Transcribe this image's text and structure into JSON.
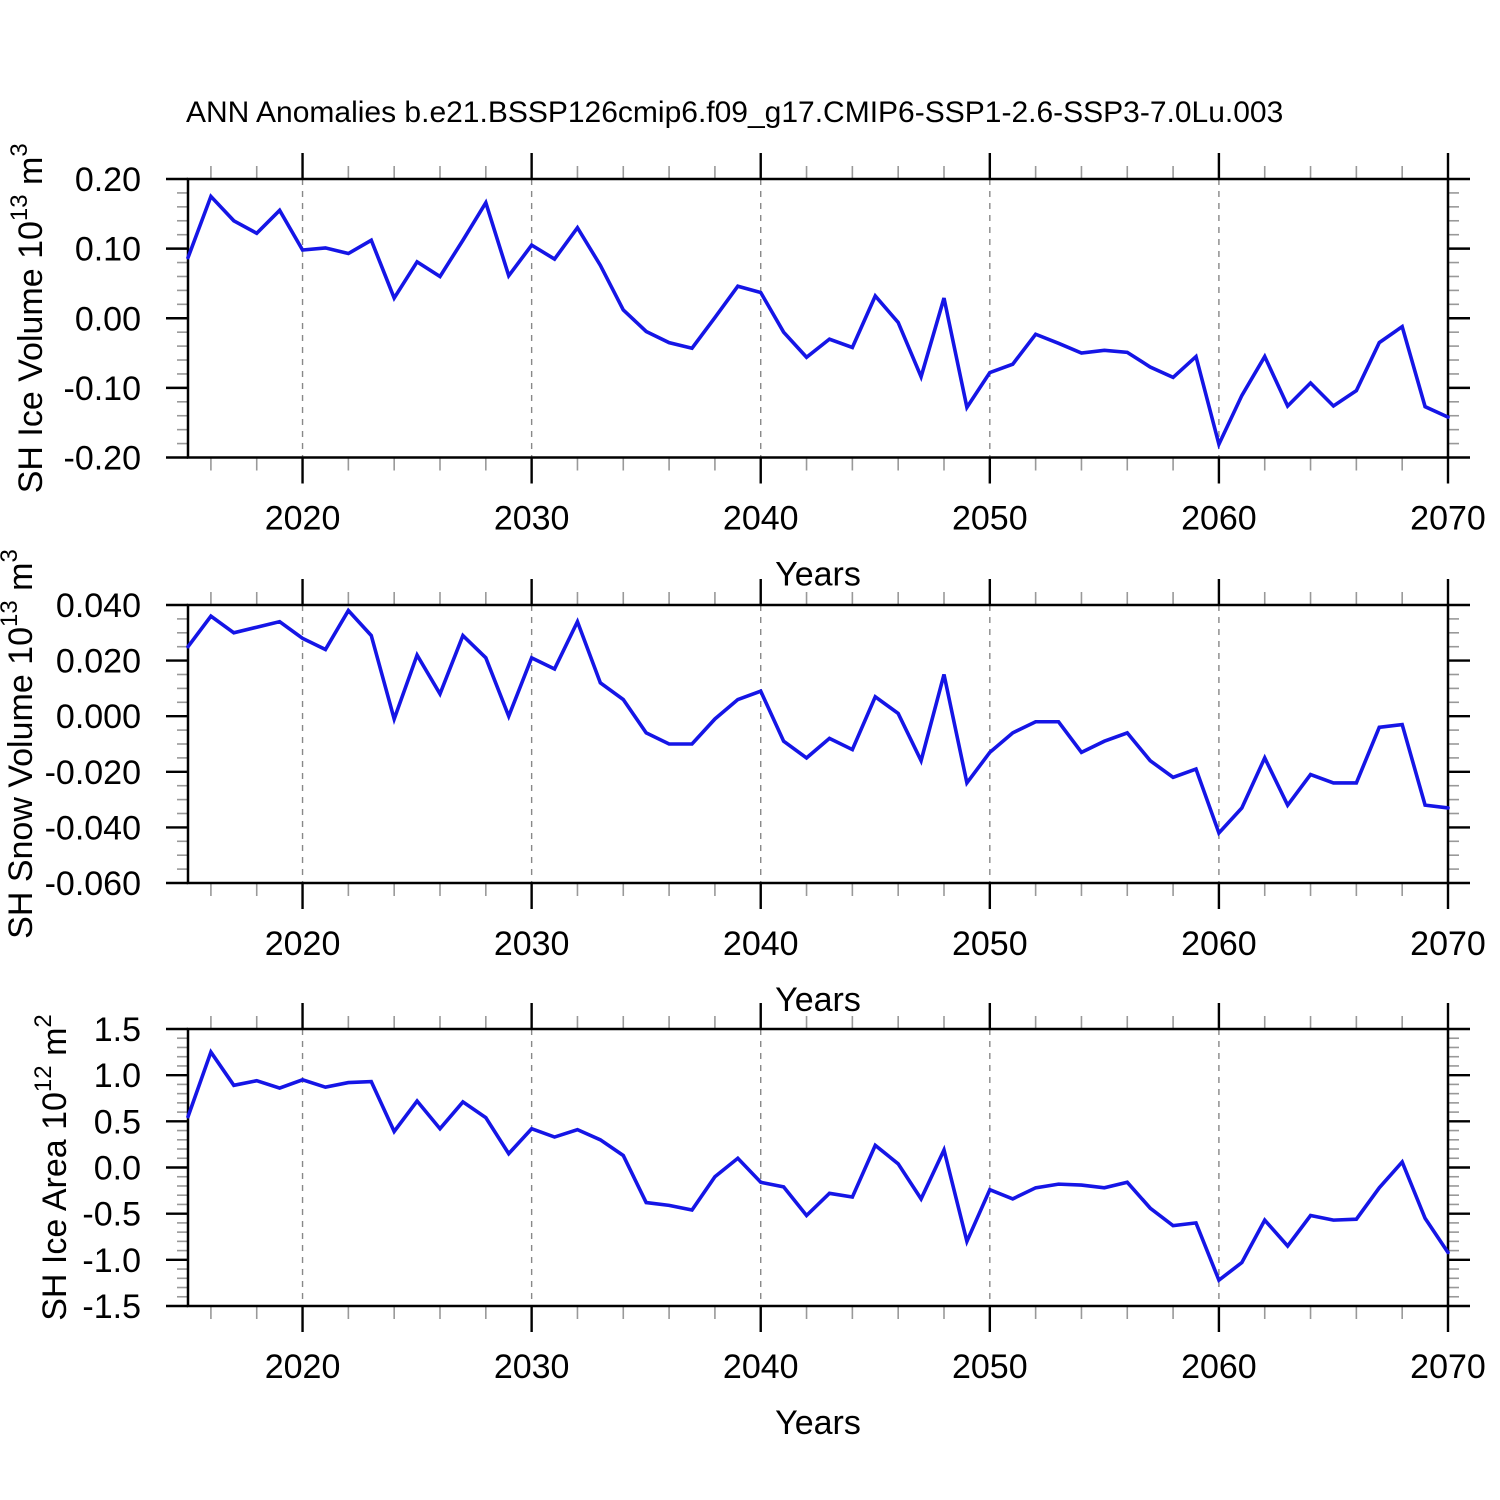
{
  "title": "ANN Anomalies b.e21.BSSP126cmip6.f09_g17.CMIP6-SSP1-2.6-SSP3-7.0Lu.003",
  "colors": {
    "line": "#1515e6",
    "axis": "#000000",
    "minor_tick": "#999999",
    "grid": "#888888",
    "background": "#ffffff",
    "text": "#000000"
  },
  "chart_data": {
    "type": "line",
    "xlabel": "Years",
    "legend": "none",
    "grid": "vertical-dashed",
    "x": [
      2015,
      2016,
      2017,
      2018,
      2019,
      2020,
      2021,
      2022,
      2023,
      2024,
      2025,
      2026,
      2027,
      2028,
      2029,
      2030,
      2031,
      2032,
      2033,
      2034,
      2035,
      2036,
      2037,
      2038,
      2039,
      2040,
      2041,
      2042,
      2043,
      2044,
      2045,
      2046,
      2047,
      2048,
      2049,
      2050,
      2051,
      2052,
      2053,
      2054,
      2055,
      2056,
      2057,
      2058,
      2059,
      2060,
      2061,
      2062,
      2063,
      2064,
      2065,
      2066,
      2067,
      2068,
      2069,
      2070
    ],
    "xlim": [
      2015,
      2070
    ],
    "x_ticks": {
      "labels": [
        "2020",
        "2030",
        "2040",
        "2050",
        "2060",
        "2070"
      ],
      "values": [
        2020,
        2030,
        2040,
        2050,
        2060,
        2070
      ],
      "minor_step": 2
    },
    "gridlines_x": [
      2020,
      2030,
      2040,
      2050,
      2060
    ],
    "panels": [
      {
        "name": "sh-ice-volume",
        "ylabel_text": "SH Ice Volume 10^13 m^3",
        "ylabel_parts": [
          {
            "t": "SH Ice Volume 10",
            "sup": false
          },
          {
            "t": "13",
            "sup": true
          },
          {
            "t": " m",
            "sup": false
          },
          {
            "t": "3",
            "sup": true
          }
        ],
        "ylim": [
          -0.2,
          0.2
        ],
        "y_ticks": {
          "labels": [
            "0.20",
            "0.10",
            "0.00",
            "-0.10",
            "-0.20"
          ],
          "values": [
            0.2,
            0.1,
            0.0,
            -0.1,
            -0.2
          ],
          "minor_step": 0.02
        },
        "values": [
          0.087,
          0.175,
          0.14,
          0.122,
          0.155,
          0.098,
          0.101,
          0.093,
          0.112,
          0.029,
          0.081,
          0.06,
          0.112,
          0.166,
          0.061,
          0.105,
          0.085,
          0.13,
          0.076,
          0.012,
          -0.019,
          -0.035,
          -0.043,
          0.001,
          0.046,
          0.037,
          -0.02,
          -0.056,
          -0.03,
          -0.042,
          0.032,
          -0.006,
          -0.084,
          0.029,
          -0.128,
          -0.078,
          -0.066,
          -0.023,
          -0.036,
          -0.05,
          -0.046,
          -0.049,
          -0.07,
          -0.085,
          -0.055,
          -0.181,
          -0.111,
          -0.055,
          -0.126,
          -0.093,
          -0.126,
          -0.104,
          -0.035,
          -0.012,
          -0.127,
          -0.142
        ]
      },
      {
        "name": "sh-snow-volume",
        "ylabel_text": "SH Snow Volume 10^13 m^3",
        "ylabel_parts": [
          {
            "t": "SH Snow Volume 10",
            "sup": false
          },
          {
            "t": "13",
            "sup": true
          },
          {
            "t": " m",
            "sup": false
          },
          {
            "t": "3",
            "sup": true
          }
        ],
        "ylim": [
          -0.06,
          0.04
        ],
        "y_ticks": {
          "labels": [
            "0.040",
            "0.020",
            "0.000",
            "-0.020",
            "-0.040",
            "-0.060"
          ],
          "values": [
            0.04,
            0.02,
            0.0,
            -0.02,
            -0.04,
            -0.06
          ],
          "minor_step": 0.005
        },
        "values": [
          0.025,
          0.036,
          0.03,
          0.032,
          0.034,
          0.028,
          0.024,
          0.038,
          0.029,
          -0.001,
          0.022,
          0.008,
          0.029,
          0.021,
          0.0,
          0.021,
          0.017,
          0.034,
          0.012,
          0.006,
          -0.006,
          -0.01,
          -0.01,
          -0.001,
          0.006,
          0.009,
          -0.009,
          -0.015,
          -0.008,
          -0.012,
          0.007,
          0.001,
          -0.016,
          0.015,
          -0.024,
          -0.013,
          -0.006,
          -0.002,
          -0.002,
          -0.013,
          -0.009,
          -0.006,
          -0.016,
          -0.022,
          -0.019,
          -0.042,
          -0.033,
          -0.015,
          -0.032,
          -0.021,
          -0.024,
          -0.024,
          -0.004,
          -0.003,
          -0.032,
          -0.033
        ]
      },
      {
        "name": "sh-ice-area",
        "ylabel_text": "SH Ice Area 10^12 m^2",
        "ylabel_parts": [
          {
            "t": "SH Ice Area 10",
            "sup": false
          },
          {
            "t": "12",
            "sup": true
          },
          {
            "t": " m",
            "sup": false
          },
          {
            "t": "2",
            "sup": true
          }
        ],
        "ylim": [
          -1.5,
          1.5
        ],
        "y_ticks": {
          "labels": [
            "1.5",
            "1.0",
            "0.5",
            "0.0",
            "-0.5",
            "-1.0",
            "-1.5"
          ],
          "values": [
            1.5,
            1.0,
            0.5,
            0.0,
            -0.5,
            -1.0,
            -1.5
          ],
          "minor_step": 0.1
        },
        "values": [
          0.55,
          1.25,
          0.89,
          0.94,
          0.86,
          0.95,
          0.87,
          0.92,
          0.93,
          0.39,
          0.72,
          0.42,
          0.71,
          0.54,
          0.15,
          0.42,
          0.33,
          0.41,
          0.3,
          0.13,
          -0.38,
          -0.41,
          -0.46,
          -0.1,
          0.1,
          -0.16,
          -0.21,
          -0.52,
          -0.28,
          -0.32,
          0.24,
          0.04,
          -0.34,
          0.19,
          -0.8,
          -0.24,
          -0.34,
          -0.22,
          -0.18,
          -0.19,
          -0.22,
          -0.16,
          -0.44,
          -0.63,
          -0.6,
          -1.22,
          -1.03,
          -0.57,
          -0.85,
          -0.52,
          -0.57,
          -0.56,
          -0.22,
          0.06,
          -0.55,
          -0.92
        ]
      }
    ]
  }
}
